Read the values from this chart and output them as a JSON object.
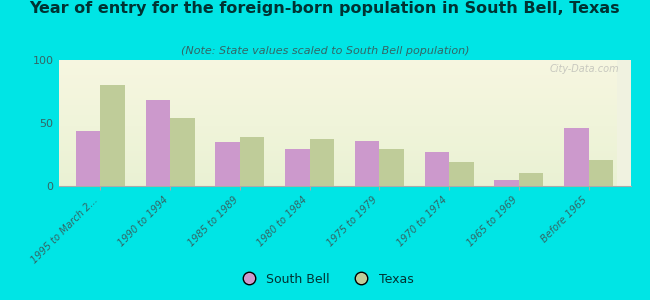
{
  "title": "Year of entry for the foreign-born population in South Bell, Texas",
  "subtitle": "(Note: State values scaled to South Bell population)",
  "categories": [
    "1995 to March 2...",
    "1990 to 1994",
    "1985 to 1989",
    "1980 to 1984",
    "1975 to 1979",
    "1970 to 1974",
    "1965 to 1969",
    "Before 1965"
  ],
  "south_bell": [
    44,
    68,
    35,
    29,
    36,
    27,
    5,
    46
  ],
  "texas": [
    80,
    54,
    39,
    37,
    29,
    19,
    10,
    21
  ],
  "south_bell_color": "#cc99cc",
  "texas_color": "#bfcc99",
  "background_color": "#00e5e5",
  "ylim": [
    0,
    100
  ],
  "yticks": [
    0,
    50,
    100
  ],
  "bar_width": 0.35,
  "watermark": "City-Data.com",
  "legend_south_bell": "South Bell",
  "legend_texas": "Texas",
  "title_color": "#003333",
  "subtitle_color": "#336666",
  "tick_label_color": "#336666",
  "title_fontsize": 11.5,
  "subtitle_fontsize": 8
}
